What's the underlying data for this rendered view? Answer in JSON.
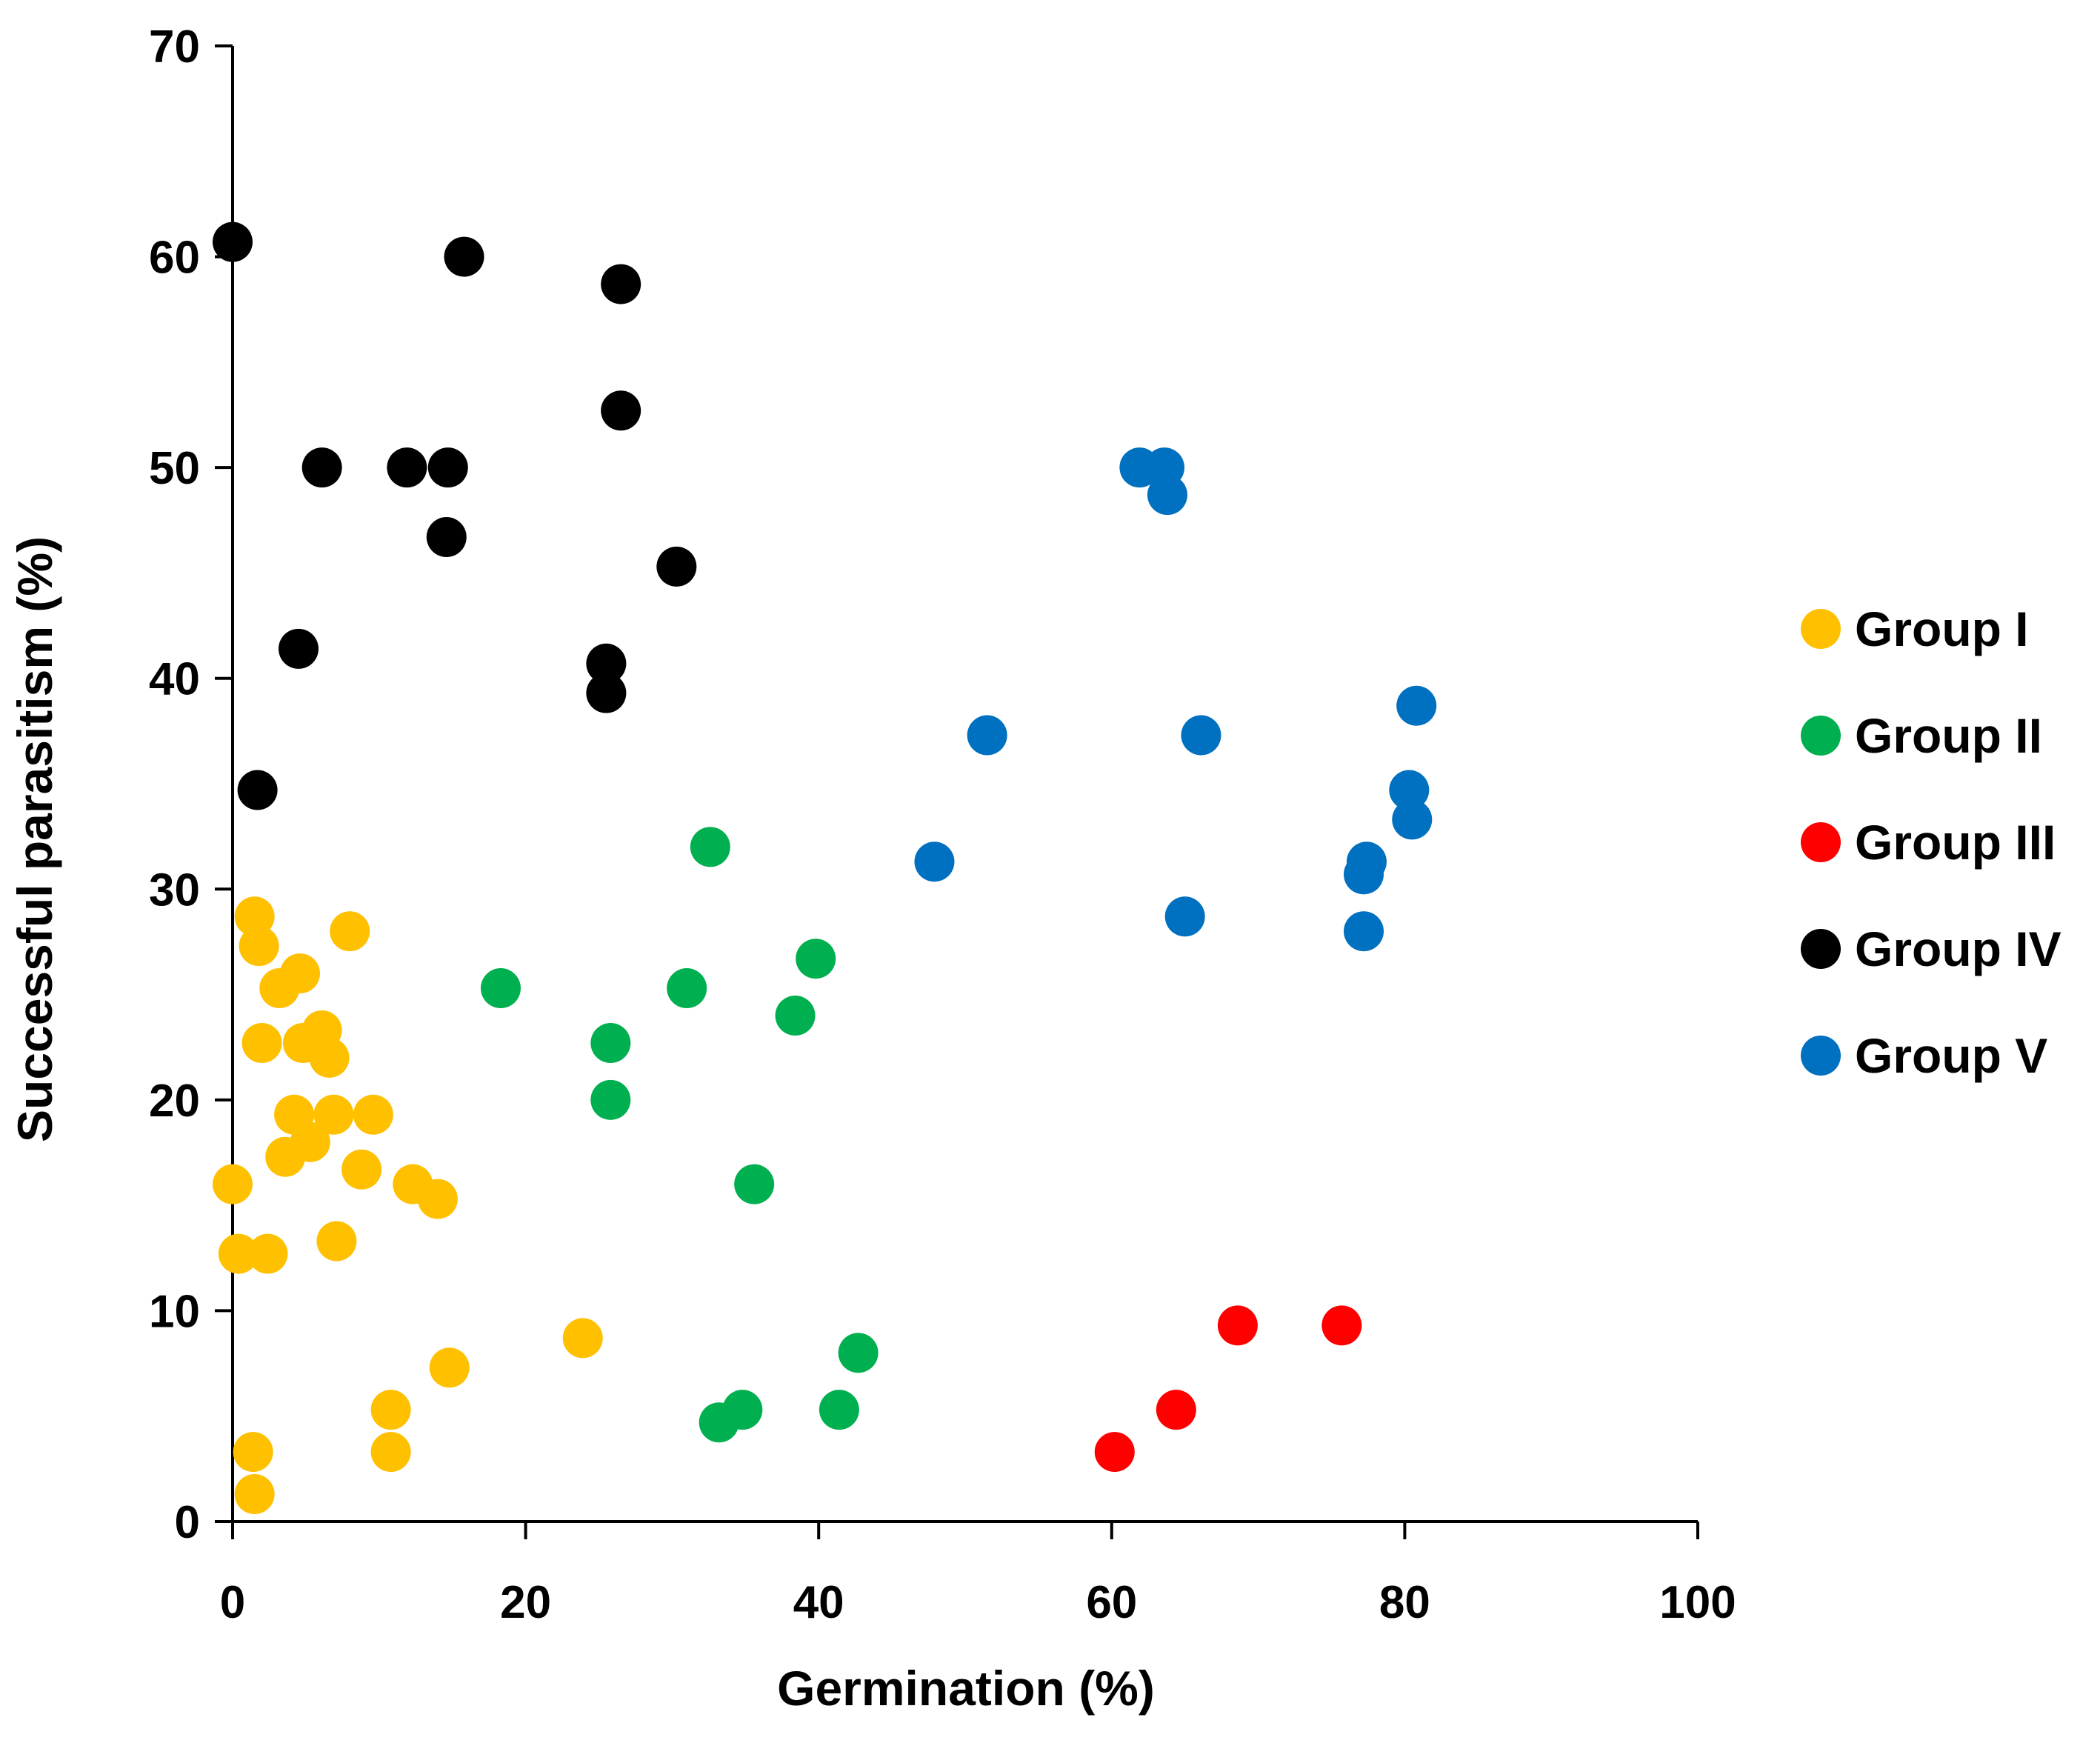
{
  "chart_data": {
    "type": "scatter",
    "title": "",
    "xlabel": "Germination (%)",
    "ylabel": "Successful parasitism (%)",
    "xlim": [
      0,
      100
    ],
    "ylim": [
      0,
      70
    ],
    "xticks": [
      0,
      20,
      40,
      60,
      80,
      100
    ],
    "yticks": [
      0,
      10,
      20,
      30,
      40,
      50,
      60,
      70
    ],
    "grid": false,
    "legend_position": "right",
    "series": [
      {
        "name": "Group I",
        "color": "#FFC000",
        "points": [
          [
            1.5,
            28.7
          ],
          [
            1.8,
            27.3
          ],
          [
            3.2,
            25.3
          ],
          [
            4.6,
            26.0
          ],
          [
            8.0,
            28.0
          ],
          [
            2.0,
            22.7
          ],
          [
            4.8,
            22.7
          ],
          [
            6.1,
            23.3
          ],
          [
            6.6,
            22.0
          ],
          [
            4.2,
            19.3
          ],
          [
            6.9,
            19.3
          ],
          [
            9.6,
            19.3
          ],
          [
            5.3,
            18.0
          ],
          [
            3.6,
            17.3
          ],
          [
            8.8,
            16.7
          ],
          [
            0.0,
            16.0
          ],
          [
            12.3,
            16.0
          ],
          [
            14.0,
            15.3
          ],
          [
            7.1,
            13.3
          ],
          [
            0.4,
            12.7
          ],
          [
            2.4,
            12.7
          ],
          [
            23.9,
            8.7
          ],
          [
            14.8,
            7.3
          ],
          [
            10.8,
            5.3
          ],
          [
            1.4,
            3.3
          ],
          [
            10.8,
            3.3
          ],
          [
            1.5,
            1.3
          ]
        ]
      },
      {
        "name": "Group II",
        "color": "#00B050",
        "points": [
          [
            32.6,
            32.0
          ],
          [
            18.3,
            25.3
          ],
          [
            31.0,
            25.3
          ],
          [
            39.8,
            26.7
          ],
          [
            25.8,
            22.7
          ],
          [
            38.4,
            24.0
          ],
          [
            25.8,
            20.0
          ],
          [
            35.6,
            16.0
          ],
          [
            42.7,
            8.0
          ],
          [
            41.4,
            5.3
          ],
          [
            34.8,
            5.3
          ],
          [
            33.2,
            4.7
          ]
        ]
      },
      {
        "name": "Group III",
        "color": "#FF0000",
        "points": [
          [
            60.2,
            3.3
          ],
          [
            64.4,
            5.3
          ],
          [
            68.6,
            9.3
          ],
          [
            75.7,
            9.3
          ]
        ]
      },
      {
        "name": "Group IV",
        "color": "#000000",
        "points": [
          [
            0.0,
            60.7
          ],
          [
            15.8,
            60.0
          ],
          [
            26.5,
            58.7
          ],
          [
            26.5,
            52.7
          ],
          [
            6.1,
            50.0
          ],
          [
            11.9,
            50.0
          ],
          [
            14.7,
            50.0
          ],
          [
            14.6,
            46.7
          ],
          [
            30.3,
            45.3
          ],
          [
            25.5,
            40.7
          ],
          [
            25.5,
            39.3
          ],
          [
            4.5,
            41.4
          ],
          [
            1.7,
            34.7
          ]
        ]
      },
      {
        "name": "Group V",
        "color": "#0070C0",
        "points": [
          [
            61.9,
            50.0
          ],
          [
            63.6,
            50.0
          ],
          [
            63.8,
            48.7
          ],
          [
            51.5,
            37.3
          ],
          [
            66.1,
            37.3
          ],
          [
            80.8,
            38.7
          ],
          [
            80.3,
            34.7
          ],
          [
            80.5,
            33.3
          ],
          [
            47.9,
            31.3
          ],
          [
            77.4,
            31.3
          ],
          [
            77.2,
            30.7
          ],
          [
            65.0,
            28.7
          ],
          [
            77.2,
            28.0
          ]
        ]
      }
    ]
  }
}
